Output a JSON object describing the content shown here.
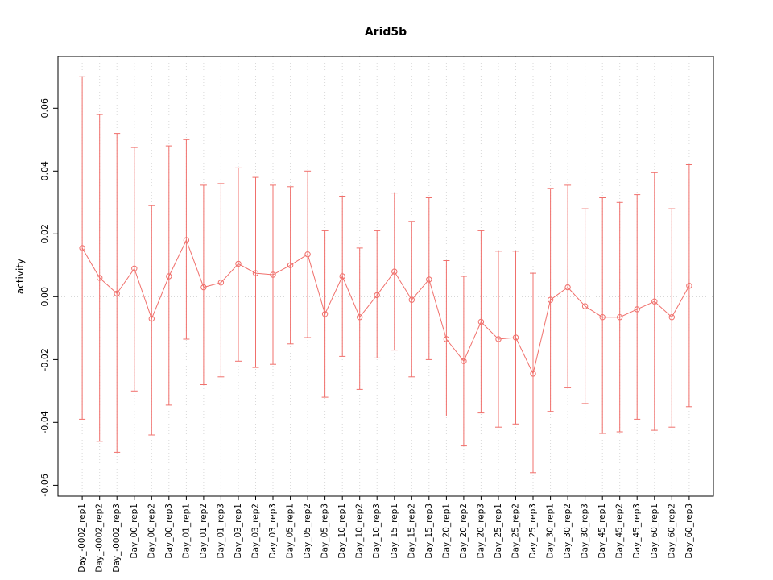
{
  "page": {
    "background": "#ffffff"
  },
  "chart_data": {
    "type": "scatter",
    "title": "Arid5b",
    "xlabel": "",
    "ylabel": "activity",
    "ylim": [
      -0.0635,
      0.0765
    ],
    "yticks": [
      -0.06,
      -0.04,
      -0.02,
      0,
      0.02,
      0.04,
      0.06
    ],
    "ytick_labels": [
      "-0.06",
      "-0.04",
      "-0.02",
      "0.00",
      "0.02",
      "0.04",
      "0.06"
    ],
    "grid": "dotted vertical gridline at each category plus dotted zero line",
    "legend": "none",
    "series_color": "#f0706c",
    "grid_color": "#d9d9d9",
    "zero_line_color": "#cccccc",
    "categories": [
      "Day_-0002_rep1",
      "Day_-0002_rep2",
      "Day_-0002_rep3",
      "Day_00_rep1",
      "Day_00_rep2",
      "Day_00_rep3",
      "Day_01_rep1",
      "Day_01_rep2",
      "Day_01_rep3",
      "Day_03_rep1",
      "Day_03_rep2",
      "Day_03_rep3",
      "Day_05_rep1",
      "Day_05_rep2",
      "Day_05_rep3",
      "Day_10_rep1",
      "Day_10_rep2",
      "Day_10_rep3",
      "Day_15_rep1",
      "Day_15_rep2",
      "Day_15_rep3",
      "Day_20_rep1",
      "Day_20_rep2",
      "Day_20_rep3",
      "Day_25_rep1",
      "Day_25_rep2",
      "Day_25_rep3",
      "Day_30_rep1",
      "Day_30_rep2",
      "Day_30_rep3",
      "Day_45_rep1",
      "Day_45_rep2",
      "Day_45_rep3",
      "Day_60_rep1",
      "Day_60_rep2",
      "Day_60_rep3"
    ],
    "series": [
      {
        "name": "activity",
        "type": "points-with-error-bars",
        "center": [
          0.0155,
          0.006,
          0.001,
          0.009,
          -0.007,
          0.0065,
          0.018,
          0.003,
          0.0045,
          0.0105,
          0.0075,
          0.007,
          0.01,
          0.0135,
          -0.0055,
          0.0065,
          -0.0065,
          0.0005,
          0.008,
          -0.001,
          0.0055,
          -0.0135,
          -0.0205,
          -0.008,
          -0.0135,
          -0.013,
          -0.0245,
          -0.001,
          0.003,
          -0.003,
          -0.0065,
          -0.0065,
          -0.004,
          -0.0015,
          -0.0065,
          0.0035
        ],
        "upper": [
          0.07,
          0.058,
          0.052,
          0.0475,
          0.029,
          0.048,
          0.05,
          0.0355,
          0.036,
          0.041,
          0.038,
          0.0355,
          0.035,
          0.04,
          0.021,
          0.032,
          0.0155,
          0.021,
          0.033,
          0.024,
          0.0315,
          0.0115,
          0.0065,
          0.021,
          0.0145,
          0.0145,
          0.0075,
          0.0345,
          0.0355,
          0.028,
          0.0315,
          0.03,
          0.0325,
          0.0395,
          0.028,
          0.042
        ],
        "lower": [
          -0.039,
          -0.046,
          -0.0495,
          -0.03,
          -0.044,
          -0.0345,
          -0.0135,
          -0.028,
          -0.0255,
          -0.0205,
          -0.0225,
          -0.0215,
          -0.015,
          -0.013,
          -0.032,
          -0.019,
          -0.0295,
          -0.0195,
          -0.017,
          -0.0255,
          -0.02,
          -0.038,
          -0.0475,
          -0.037,
          -0.0415,
          -0.0405,
          -0.056,
          -0.0365,
          -0.029,
          -0.034,
          -0.0435,
          -0.043,
          -0.039,
          -0.0425,
          -0.0415,
          -0.035
        ]
      }
    ]
  }
}
